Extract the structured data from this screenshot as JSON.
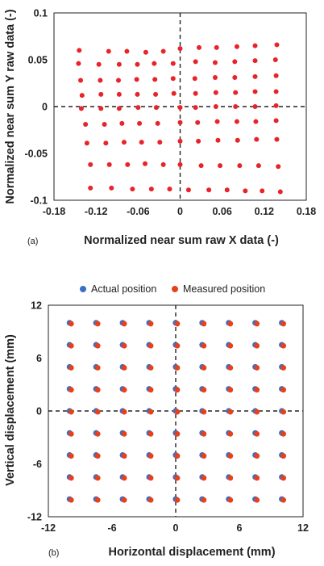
{
  "chart_data": [
    {
      "type": "scatter",
      "panel_label": "(a)",
      "title": "",
      "xlabel": "Normalized near sum raw X data (-)",
      "ylabel": "Normalized near sum Y raw data (-)",
      "xlim": [
        -0.18,
        0.18
      ],
      "ylim": [
        -0.1,
        0.1
      ],
      "xticks": [
        "-0.18",
        "-0.12",
        "-0.06",
        "0",
        "0.06",
        "0.12",
        "0.18"
      ],
      "yticks": [
        "0.1",
        "0.05",
        "0",
        "-0.05",
        "-0.1"
      ],
      "grid": false,
      "zero_lines": "dashed",
      "series": [
        {
          "color": "#e8232a",
          "points": [
            [
              -0.144,
              0.06
            ],
            [
              -0.102,
              0.059
            ],
            [
              -0.076,
              0.059
            ],
            [
              -0.049,
              0.058
            ],
            [
              -0.024,
              0.059
            ],
            [
              0,
              0.062
            ],
            [
              0.027,
              0.063
            ],
            [
              0.052,
              0.063
            ],
            [
              0.081,
              0.064
            ],
            [
              0.107,
              0.065
            ],
            [
              0.138,
              0.066
            ],
            [
              -0.145,
              0.046
            ],
            [
              -0.116,
              0.045
            ],
            [
              -0.087,
              0.045
            ],
            [
              -0.061,
              0.045
            ],
            [
              -0.037,
              0.046
            ],
            [
              -0.01,
              0.046
            ],
            [
              0.022,
              0.048
            ],
            [
              0.05,
              0.047
            ],
            [
              0.078,
              0.048
            ],
            [
              0.107,
              0.049
            ],
            [
              0.136,
              0.05
            ],
            [
              -0.142,
              0.028
            ],
            [
              -0.114,
              0.028
            ],
            [
              -0.088,
              0.028
            ],
            [
              -0.062,
              0.029
            ],
            [
              -0.036,
              0.029
            ],
            [
              -0.01,
              0.03
            ],
            [
              0.021,
              0.03
            ],
            [
              0.05,
              0.031
            ],
            [
              0.078,
              0.031
            ],
            [
              0.107,
              0.032
            ],
            [
              0.137,
              0.033
            ],
            [
              -0.14,
              0.012
            ],
            [
              -0.113,
              0.013
            ],
            [
              -0.087,
              0.013
            ],
            [
              -0.061,
              0.013
            ],
            [
              -0.035,
              0.013
            ],
            [
              -0.009,
              0.014
            ],
            [
              0.022,
              0.014
            ],
            [
              0.051,
              0.015
            ],
            [
              0.079,
              0.015
            ],
            [
              0.107,
              0.016
            ],
            [
              0.137,
              0.016
            ],
            [
              -0.141,
              -0.002
            ],
            [
              -0.113,
              -0.002
            ],
            [
              -0.087,
              -0.002
            ],
            [
              -0.06,
              -0.001
            ],
            [
              -0.034,
              -0.001
            ],
            [
              0,
              -0.001
            ],
            [
              0.022,
              -0.001
            ],
            [
              0.051,
              0
            ],
            [
              0.079,
              0
            ],
            [
              0.107,
              0
            ],
            [
              0.137,
              0.001
            ],
            [
              -0.135,
              -0.019
            ],
            [
              -0.108,
              -0.019
            ],
            [
              -0.083,
              -0.018
            ],
            [
              -0.058,
              -0.018
            ],
            [
              -0.032,
              -0.018
            ],
            [
              0,
              -0.017
            ],
            [
              0.025,
              -0.017
            ],
            [
              0.053,
              -0.016
            ],
            [
              0.081,
              -0.016
            ],
            [
              0.108,
              -0.016
            ],
            [
              0.137,
              -0.015
            ],
            [
              -0.133,
              -0.039
            ],
            [
              -0.106,
              -0.039
            ],
            [
              -0.08,
              -0.038
            ],
            [
              -0.055,
              -0.038
            ],
            [
              -0.029,
              -0.038
            ],
            [
              0,
              -0.037
            ],
            [
              0.026,
              -0.037
            ],
            [
              0.054,
              -0.036
            ],
            [
              0.082,
              -0.036
            ],
            [
              0.109,
              -0.035
            ],
            [
              0.138,
              -0.035
            ],
            [
              -0.128,
              -0.062
            ],
            [
              -0.101,
              -0.062
            ],
            [
              -0.075,
              -0.062
            ],
            [
              -0.05,
              -0.061
            ],
            [
              -0.024,
              -0.062
            ],
            [
              0,
              -0.062
            ],
            [
              0.03,
              -0.063
            ],
            [
              0.057,
              -0.063
            ],
            [
              0.085,
              -0.063
            ],
            [
              0.112,
              -0.063
            ],
            [
              0.14,
              -0.064
            ],
            [
              -0.128,
              -0.087
            ],
            [
              -0.098,
              -0.087
            ],
            [
              -0.068,
              -0.088
            ],
            [
              -0.041,
              -0.088
            ],
            [
              -0.015,
              -0.088
            ],
            [
              0.012,
              -0.089
            ],
            [
              0.041,
              -0.089
            ],
            [
              0.067,
              -0.089
            ],
            [
              0.093,
              -0.09
            ],
            [
              0.117,
              -0.09
            ],
            [
              0.143,
              -0.091
            ]
          ]
        }
      ]
    },
    {
      "type": "scatter",
      "panel_label": "(b)",
      "title": "",
      "xlabel": "Horizontal displacement (mm)",
      "ylabel": "Vertical displacement (mm)",
      "xlim": [
        -12,
        12
      ],
      "ylim": [
        -12,
        12
      ],
      "xticks": [
        "-12",
        "-6",
        "0",
        "6",
        "12"
      ],
      "yticks": [
        "12",
        "6",
        "0",
        "-6",
        "-12"
      ],
      "grid": false,
      "zero_lines": "dashed",
      "legend_position": "top",
      "grid_x": [
        -10,
        -7.5,
        -5,
        -2.5,
        0,
        2.5,
        5,
        7.5,
        10
      ],
      "grid_y": [
        10,
        7.5,
        5,
        2.5,
        0,
        -2.5,
        -5,
        -7.5,
        -10
      ],
      "series": [
        {
          "name": "Actual position",
          "color": "#3a6fc4"
        },
        {
          "name": "Measured position",
          "color": "#e8401c",
          "offset_mm": [
            0.15,
            -0.1
          ]
        }
      ]
    }
  ]
}
